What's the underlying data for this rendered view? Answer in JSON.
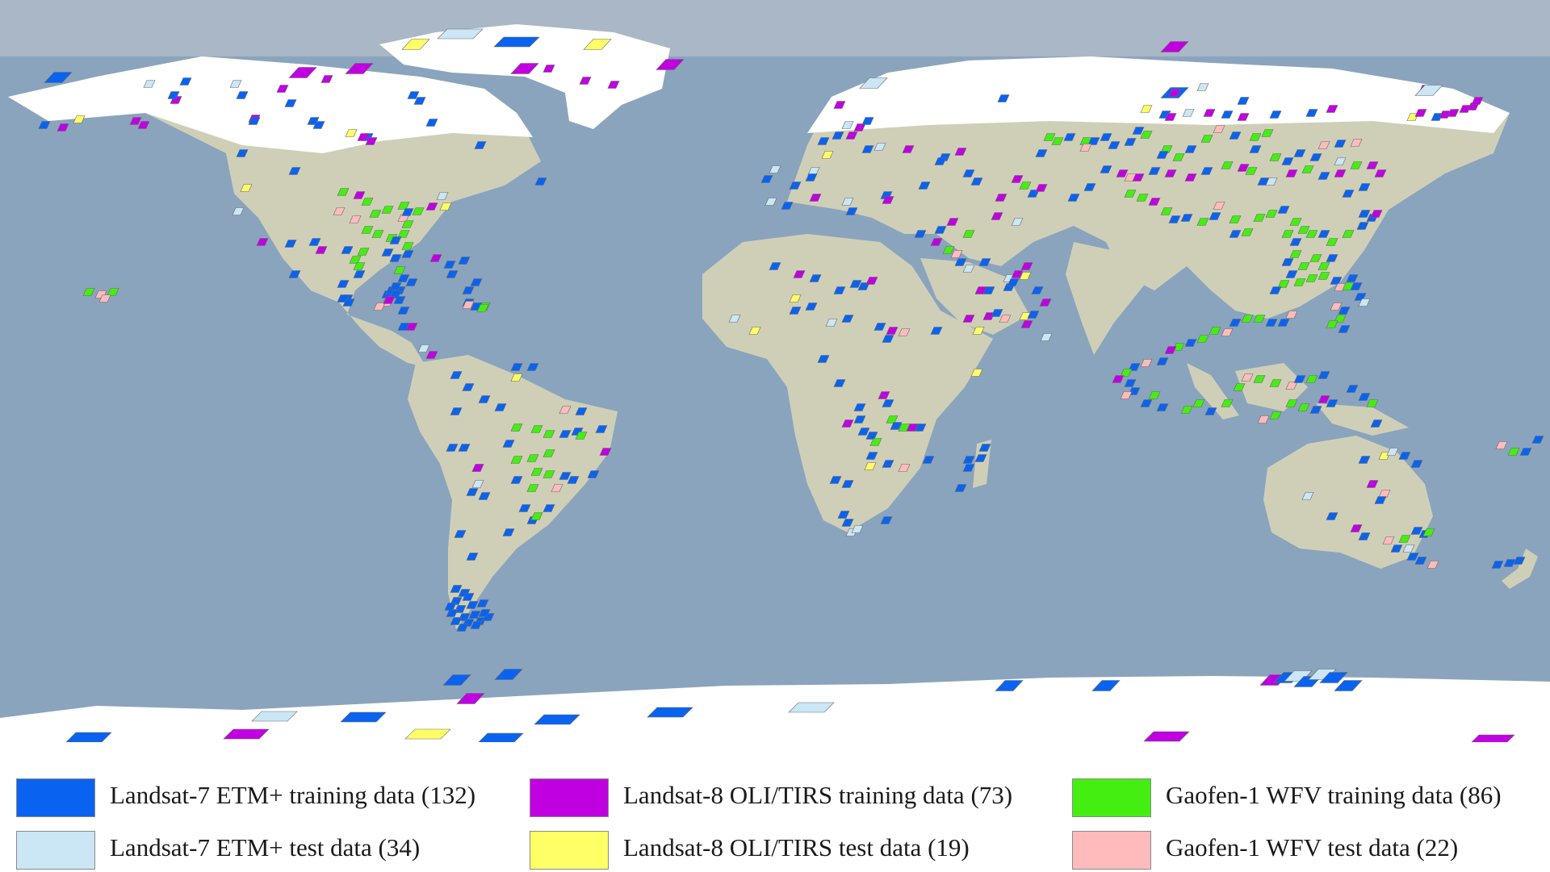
{
  "colors": {
    "ocean": "#8aa4bd",
    "land": "#cfcfb8",
    "ice": "#ffffff",
    "l7_train": "#0a63f0",
    "l7_test": "#cbe6f5",
    "l8_train": "#c000e0",
    "l8_test": "#ffff66",
    "gf_train": "#44ee11",
    "gf_test": "#ffbbbb"
  },
  "legend": [
    {
      "label": "Landsat-7 ETM+ training data (132)",
      "color": "#0a63f0"
    },
    {
      "label": "Landsat-8 OLI/TIRS training data (73)",
      "color": "#c000e0"
    },
    {
      "label": "Gaofen-1 WFV training data (86)",
      "color": "#44ee11"
    },
    {
      "label": "Landsat-7 ETM+ test data (34)",
      "color": "#cbe6f5"
    },
    {
      "label": "Landsat-8 OLI/TIRS test data (19)",
      "color": "#ffff66"
    },
    {
      "label": "Gaofen-1 WFV test data (22)",
      "color": "#ffbbbb"
    }
  ]
}
